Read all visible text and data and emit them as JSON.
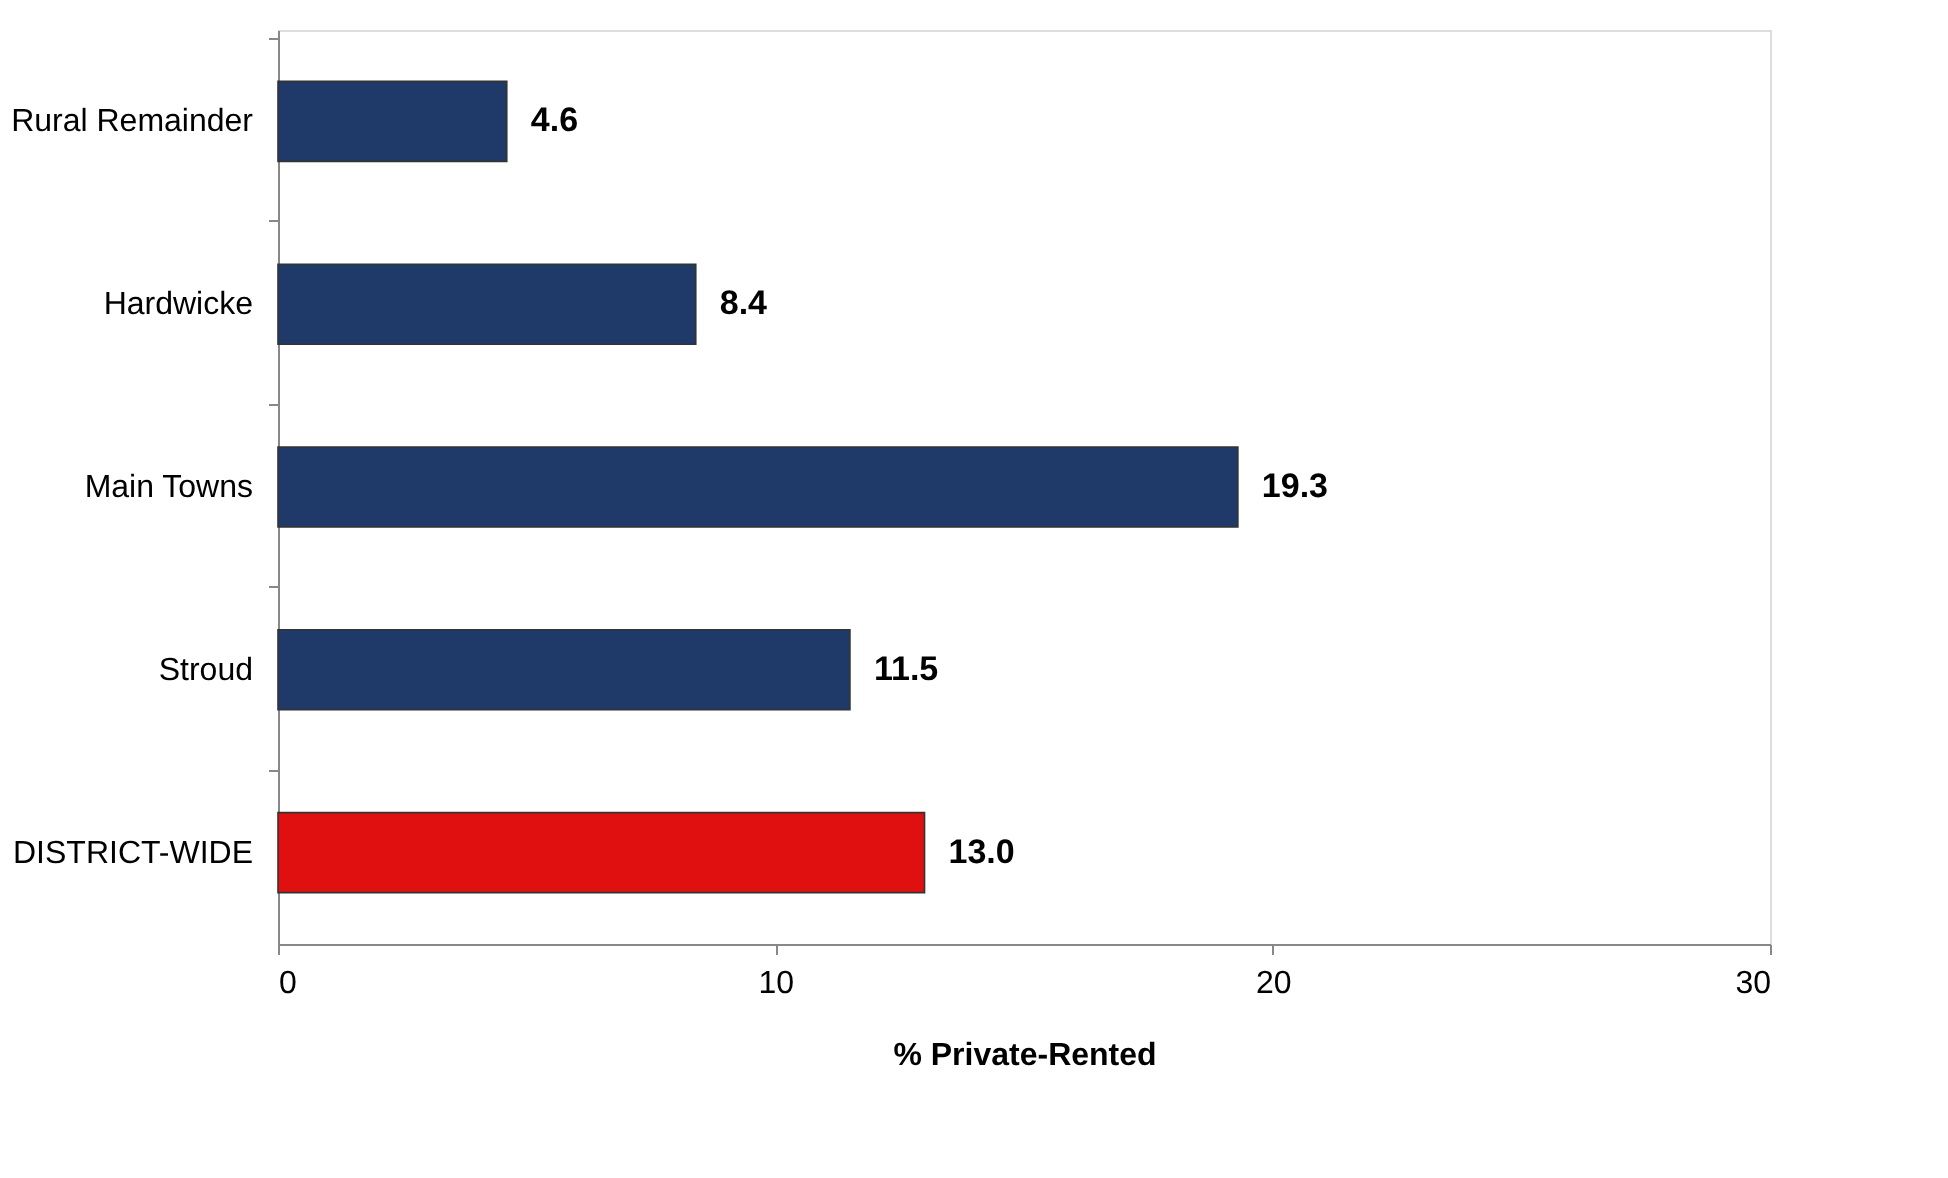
{
  "chart_data": {
    "type": "bar",
    "orientation": "horizontal",
    "xlabel": "% Private-Rented",
    "categories": [
      "Rural Remainder",
      "Hardwicke",
      "Main Towns",
      "Stroud",
      "DISTRICT-WIDE"
    ],
    "values": [
      4.6,
      8.4,
      19.3,
      11.5,
      13.0
    ],
    "value_labels": [
      "4.6",
      "8.4",
      "19.3",
      "11.5",
      "13.0"
    ],
    "colors": [
      "#1f3a68",
      "#1f3a68",
      "#1f3a68",
      "#1f3a68",
      "#e01010"
    ],
    "xlim": [
      0,
      30
    ],
    "xticks": [
      0,
      10,
      20,
      30
    ],
    "grid": false
  }
}
